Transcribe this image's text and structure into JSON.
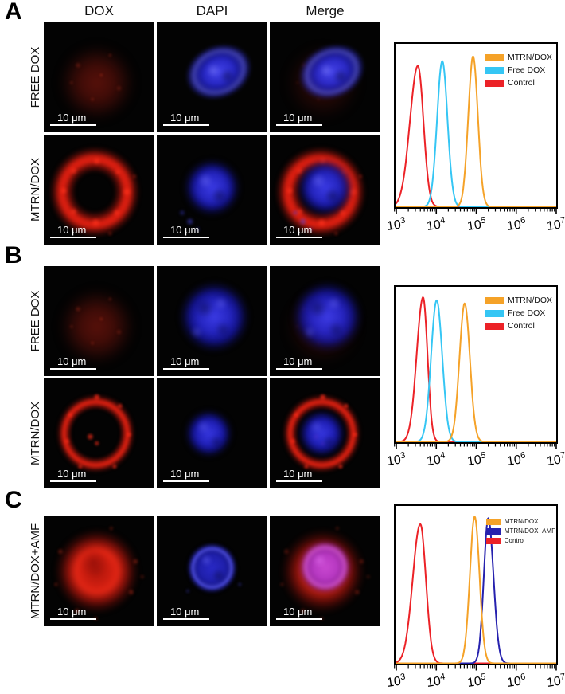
{
  "figure": {
    "scale_bar_label": "10 μm",
    "x_axis_tick_labels": [
      "10^3",
      "10^4",
      "10^5",
      "10^6",
      "10^7"
    ]
  },
  "panels": [
    {
      "label": "A",
      "column_headers": [
        "DOX",
        "DAPI",
        "Merge"
      ],
      "rows": [
        {
          "label": "FREE DOX",
          "cells": [
            {
              "channel": "DOX",
              "art": [
                "red-diffuse-faint"
              ]
            },
            {
              "channel": "DAPI",
              "art": [
                "nucleus-blue-oval"
              ]
            },
            {
              "channel": "Merge",
              "art": [
                "red-diffuse-very-faint",
                "nucleus-blue-oval"
              ]
            }
          ]
        },
        {
          "label": "MTRN/DOX",
          "cells": [
            {
              "channel": "DOX",
              "art": [
                "red-ring-punctate"
              ]
            },
            {
              "channel": "DAPI",
              "art": [
                "nucleus-blue-round"
              ]
            },
            {
              "channel": "Merge",
              "art": [
                "red-ring-punctate",
                "nucleus-blue-round"
              ]
            }
          ]
        }
      ],
      "chart_data": {
        "type": "line",
        "subtype": "flow-cytometry-histogram",
        "title": "",
        "xlabel": "",
        "ylabel": "",
        "grid": false,
        "x_scale": "log10",
        "xlim_exponents": [
          2.94,
          7.04
        ],
        "x_tick_exponents": [
          3,
          4,
          5,
          6,
          7
        ],
        "legend_position": "top-right",
        "series": [
          {
            "name": "MTRN/DOX",
            "color": "#F5A228",
            "peak_exponent": 4.92,
            "peak_value": 83000,
            "width_decades_left": 0.12,
            "width_decades_right": 0.12,
            "rel_height": 0.94
          },
          {
            "name": "Free DOX",
            "color": "#35C6F4",
            "peak_exponent": 4.15,
            "peak_value": 14000,
            "width_decades_left": 0.13,
            "width_decades_right": 0.13,
            "rel_height": 0.91
          },
          {
            "name": "Control",
            "color": "#EC2227",
            "peak_exponent": 3.54,
            "peak_value": 3500,
            "width_decades_left": 0.2,
            "width_decades_right": 0.14,
            "rel_height": 0.88
          }
        ]
      }
    },
    {
      "label": "B",
      "column_headers": null,
      "rows": [
        {
          "label": "FREE DOX",
          "cells": [
            {
              "channel": "DOX",
              "art": [
                "red-diffuse-faint"
              ]
            },
            {
              "channel": "DAPI",
              "art": [
                "nucleus-blue-large"
              ]
            },
            {
              "channel": "Merge",
              "art": [
                "red-diffuse-very-faint",
                "nucleus-blue-large"
              ]
            }
          ]
        },
        {
          "label": "MTRN/DOX",
          "cells": [
            {
              "channel": "DOX",
              "art": [
                "red-ring-thin"
              ]
            },
            {
              "channel": "DAPI",
              "art": [
                "nucleus-blue-small"
              ]
            },
            {
              "channel": "Merge",
              "art": [
                "red-ring-thin",
                "nucleus-blue-small"
              ]
            }
          ]
        }
      ],
      "chart_data": {
        "type": "line",
        "subtype": "flow-cytometry-histogram",
        "title": "",
        "xlabel": "",
        "ylabel": "",
        "grid": false,
        "x_scale": "log10",
        "xlim_exponents": [
          2.94,
          7.04
        ],
        "x_tick_exponents": [
          3,
          4,
          5,
          6,
          7
        ],
        "legend_position": "top-right",
        "series": [
          {
            "name": "MTRN/DOX",
            "color": "#F5A228",
            "peak_exponent": 4.71,
            "peak_value": 51000,
            "width_decades_left": 0.13,
            "width_decades_right": 0.13,
            "rel_height": 0.91
          },
          {
            "name": "Free DOX",
            "color": "#35C6F4",
            "peak_exponent": 4.01,
            "peak_value": 10000,
            "width_decades_left": 0.14,
            "width_decades_right": 0.14,
            "rel_height": 0.93
          },
          {
            "name": "Control",
            "color": "#EC2227",
            "peak_exponent": 3.67,
            "peak_value": 4700,
            "width_decades_left": 0.16,
            "width_decades_right": 0.11,
            "rel_height": 0.95
          }
        ]
      }
    },
    {
      "label": "C",
      "column_headers": null,
      "rows": [
        {
          "label": "MTRN/DOX+AMF",
          "cells": [
            {
              "channel": "DOX",
              "art": [
                "red-cell-bright"
              ]
            },
            {
              "channel": "DAPI",
              "art": [
                "nucleus-blue-rimmed"
              ]
            },
            {
              "channel": "Merge",
              "art": [
                "red-cell-bright-dim",
                "nucleus-magenta"
              ]
            }
          ]
        }
      ],
      "chart_data": {
        "type": "line",
        "subtype": "flow-cytometry-histogram",
        "title": "",
        "xlabel": "",
        "ylabel": "",
        "grid": false,
        "x_scale": "log10",
        "xlim_exponents": [
          2.94,
          7.04
        ],
        "x_tick_exponents": [
          3,
          4,
          5,
          6,
          7
        ],
        "legend_position": "top-right",
        "series": [
          {
            "name": "MTRN/DOX",
            "color": "#F5A228",
            "peak_exponent": 4.96,
            "peak_value": 91000,
            "width_decades_left": 0.12,
            "width_decades_right": 0.12,
            "rel_height": 0.95
          },
          {
            "name": "MTRN/DOX+AMF",
            "color": "#2621AE",
            "peak_exponent": 5.3,
            "peak_value": 200000,
            "width_decades_left": 0.11,
            "width_decades_right": 0.13,
            "rel_height": 0.94
          },
          {
            "name": "Control",
            "color": "#EC2227",
            "peak_exponent": 3.6,
            "peak_value": 4000,
            "width_decades_left": 0.19,
            "width_decades_right": 0.14,
            "rel_height": 0.9
          }
        ]
      }
    }
  ]
}
